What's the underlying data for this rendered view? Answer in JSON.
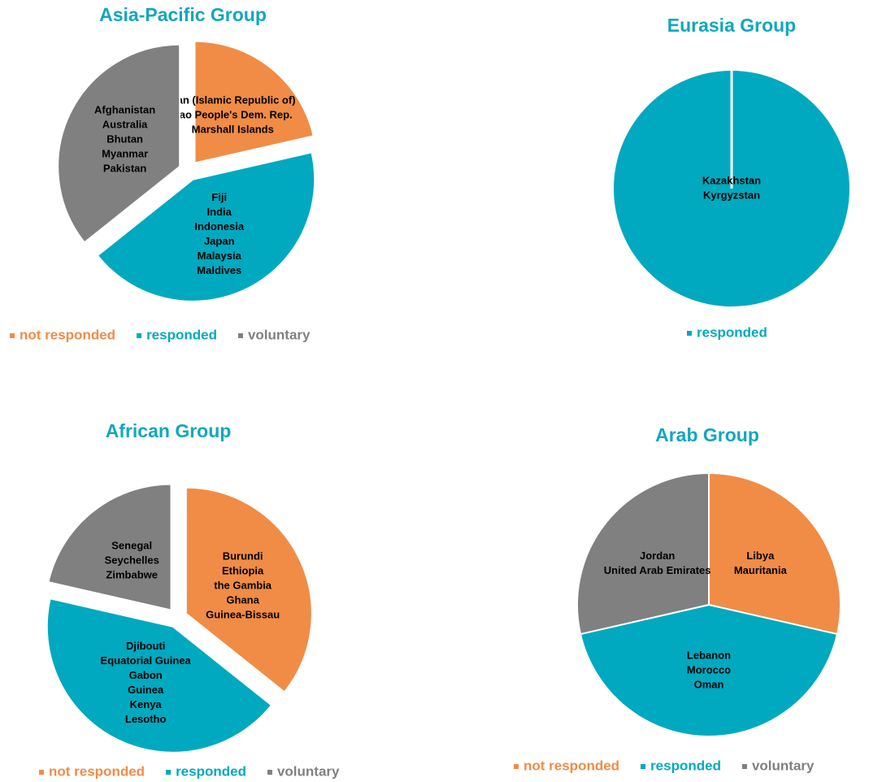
{
  "chart_data": [
    {
      "type": "pie",
      "title": "Asia-Pacific Group",
      "categories": [
        "not responded",
        "responded",
        "voluntary"
      ],
      "values": [
        3,
        6,
        5
      ],
      "colors": [
        "#f08c46",
        "#00a9bf",
        "#808080"
      ],
      "slice_labels": [
        [
          "Iran (Islamic Republic of)",
          "Lao People's Dem. Rep.",
          "Marshall Islands"
        ],
        [
          "Fiji",
          "India",
          "Indonesia",
          "Japan",
          "Malaysia",
          "Maldives"
        ],
        [
          "Afghanistan",
          "Australia",
          "Bhutan",
          "Myanmar",
          "Pakistan"
        ]
      ]
    },
    {
      "type": "pie",
      "title": "Eurasia Group",
      "categories": [
        "responded"
      ],
      "values": [
        2
      ],
      "colors": [
        "#00a9bf"
      ],
      "slice_labels": [
        [
          "Kazakhstan",
          "Kyrgyzstan"
        ]
      ]
    },
    {
      "type": "pie",
      "title": "African Group",
      "categories": [
        "not responded",
        "responded",
        "voluntary"
      ],
      "values": [
        5,
        6,
        3
      ],
      "colors": [
        "#f08c46",
        "#00a9bf",
        "#808080"
      ],
      "slice_labels": [
        [
          "Burundi",
          "Ethiopia",
          "the Gambia",
          "Ghana",
          "Guinea-Bissau"
        ],
        [
          "Djibouti",
          "Equatorial Guinea",
          "Gabon",
          "Guinea",
          "Kenya",
          "Lesotho"
        ],
        [
          "Senegal",
          "Seychelles",
          "Zimbabwe"
        ]
      ]
    },
    {
      "type": "pie",
      "title": "Arab Group",
      "categories": [
        "not responded",
        "responded",
        "voluntary"
      ],
      "values": [
        2,
        3,
        2
      ],
      "colors": [
        "#f08c46",
        "#00a9bf",
        "#808080"
      ],
      "slice_labels": [
        [
          "Libya",
          "Mauritania"
        ],
        [
          "Lebanon",
          "Morocco",
          "Oman"
        ],
        [
          "Jordan",
          "United Arab Emirates"
        ]
      ]
    }
  ]
}
